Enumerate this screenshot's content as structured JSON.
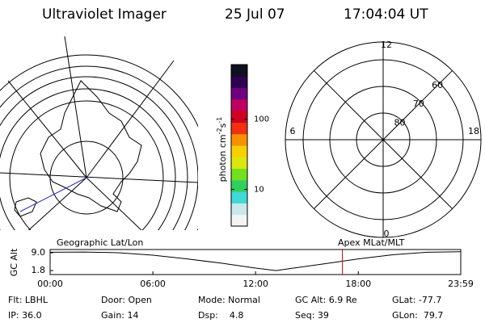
{
  "header": {
    "title": "Ultraviolet Imager",
    "date": "25 Jul 07",
    "time": "17:04:04 UT"
  },
  "colorbar": {
    "label": [
      "photon cm",
      "-2",
      "s",
      "-1"
    ],
    "log": true,
    "lim": [
      3,
      600
    ],
    "ticks": [
      10,
      100
    ],
    "colors": [
      "#f4f4f4",
      "#c8e8ea",
      "#40d8d8",
      "#30d060",
      "#70e020",
      "#d8e810",
      "#f8d000",
      "#f89000",
      "#f03010",
      "#d00020",
      "#c00060",
      "#700080",
      "#300050",
      "#101020"
    ]
  },
  "mlt_plot": {
    "hours": [
      12,
      6,
      0,
      18
    ],
    "lats": [
      80,
      70,
      60
    ]
  },
  "timeline": {
    "type": "line",
    "left_label": "Geographic Lat/Lon",
    "right_label": "Apex MLat/MLT",
    "ylabel": "GC Alt",
    "xlim": [
      0,
      23.983
    ],
    "ylim": [
      0.2,
      10.3
    ],
    "xticks": [
      {
        "value": 0,
        "label": "00:00"
      },
      {
        "value": 6,
        "label": "06:00"
      },
      {
        "value": 12,
        "label": "12:00"
      },
      {
        "value": 18,
        "label": "18:00"
      },
      {
        "value": 23.983,
        "label": "23:59"
      }
    ],
    "yticks": [
      {
        "value": 9,
        "label": "9.0"
      },
      {
        "value": 1.8,
        "label": "1.8"
      }
    ],
    "x": [
      0,
      2,
      4,
      6,
      8,
      10,
      12,
      13.2,
      14,
      16,
      18,
      20,
      22,
      23.983
    ],
    "values": [
      9.2,
      9.3,
      9.0,
      8.0,
      6.5,
      4.8,
      2.8,
      1.8,
      2.6,
      4.5,
      6.5,
      8.2,
      9.2,
      9.4
    ],
    "color": "#000000",
    "marker": 17.07,
    "marker_color": "#e00000"
  },
  "footer": [
    [
      "Flt: LBHL",
      "Door: Open",
      "Mode: Normal",
      "GC Alt: 6.9 Re",
      "GLat: -77.7"
    ],
    [
      "IP: 36.0",
      "Gain: 14",
      "Dsp:    4.8",
      "Seq: 39",
      "GLon:  79.7"
    ]
  ]
}
